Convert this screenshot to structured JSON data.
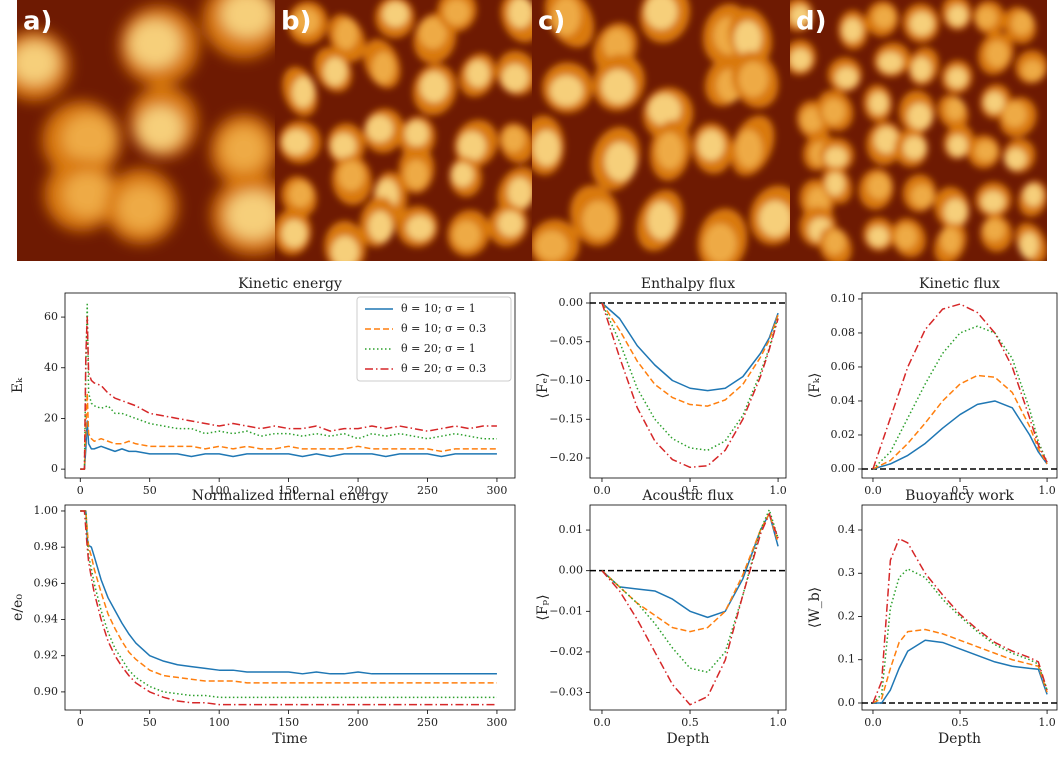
{
  "panels": {
    "labels": [
      "a)",
      "b)",
      "c)",
      "d)"
    ]
  },
  "chart_data": [
    {
      "type": "line",
      "title": "Kinetic energy",
      "ylabel": "Eₖ",
      "x": [
        0,
        3,
        4,
        5,
        6,
        8,
        10,
        15,
        20,
        25,
        30,
        35,
        40,
        50,
        60,
        70,
        80,
        90,
        100,
        110,
        120,
        130,
        140,
        150,
        160,
        170,
        180,
        190,
        200,
        210,
        220,
        230,
        240,
        250,
        260,
        270,
        280,
        290,
        300
      ],
      "xlim": [
        -11,
        313
      ],
      "ylim": [
        -3.5,
        69.5
      ],
      "xticks": [
        0,
        50,
        100,
        150,
        200,
        250,
        300
      ],
      "yticks": [
        0,
        20,
        40,
        60
      ],
      "legend": "upper right",
      "series": [
        {
          "name": "θ = 10; σ = 1",
          "color": "#1f77b4",
          "style": "solid",
          "values": [
            0,
            0,
            8,
            19,
            10,
            8,
            8,
            9,
            8,
            7,
            8,
            7,
            7,
            6,
            6,
            6,
            5,
            6,
            6,
            5,
            6,
            6,
            6,
            6,
            5,
            6,
            5,
            6,
            6,
            6,
            5,
            6,
            6,
            6,
            5,
            6,
            6,
            6,
            6
          ]
        },
        {
          "name": "θ = 10; σ = 0.3",
          "color": "#ff7f0e",
          "style": "dashed",
          "values": [
            0,
            0,
            15,
            30,
            14,
            12,
            11,
            12,
            11,
            10,
            10,
            11,
            10,
            9,
            9,
            9,
            9,
            8,
            9,
            8,
            9,
            8,
            8,
            9,
            8,
            8,
            8,
            8,
            9,
            8,
            8,
            8,
            8,
            8,
            7,
            8,
            8,
            8,
            8
          ]
        },
        {
          "name": "θ = 20; σ = 1",
          "color": "#2ca02c",
          "style": "dotted",
          "values": [
            0,
            0,
            40,
            65,
            30,
            26,
            25,
            24,
            25,
            22,
            22,
            21,
            20,
            18,
            17,
            16,
            16,
            14,
            15,
            14,
            15,
            13,
            14,
            14,
            13,
            14,
            13,
            14,
            12,
            14,
            13,
            14,
            13,
            12,
            13,
            14,
            13,
            12,
            12
          ]
        },
        {
          "name": "θ = 20; σ = 0.3",
          "color": "#d62728",
          "style": "dashdot",
          "values": [
            0,
            0,
            45,
            60,
            38,
            35,
            34,
            33,
            30,
            28,
            27,
            26,
            25,
            22,
            21,
            20,
            19,
            18,
            17,
            18,
            17,
            16,
            17,
            16,
            16,
            17,
            15,
            16,
            16,
            17,
            16,
            17,
            16,
            15,
            16,
            17,
            16,
            17,
            17
          ]
        }
      ]
    },
    {
      "type": "line",
      "title": "Normalized internal energy",
      "xlabel": "Time",
      "ylabel": "e/e₀",
      "x": [
        0,
        3,
        4,
        5,
        6,
        8,
        10,
        15,
        20,
        25,
        30,
        35,
        40,
        50,
        60,
        70,
        80,
        90,
        100,
        110,
        120,
        130,
        140,
        150,
        160,
        170,
        180,
        190,
        200,
        210,
        220,
        230,
        240,
        250,
        260,
        270,
        280,
        290,
        300
      ],
      "xlim": [
        -11,
        313
      ],
      "ylim": [
        0.89,
        1.0033
      ],
      "xticks": [
        0,
        50,
        100,
        150,
        200,
        250,
        300
      ],
      "yticks": [
        {
          "value": 1,
          "label": "1.00"
        },
        0.98,
        0.96,
        0.94,
        0.92,
        {
          "value": 0.9,
          "label": "0.90"
        }
      ],
      "series": [
        {
          "color": "#1f77b4",
          "style": "solid",
          "values": [
            1,
            1,
            1,
            0.985,
            0.981,
            0.98,
            0.975,
            0.962,
            0.952,
            0.945,
            0.938,
            0.932,
            0.927,
            0.92,
            0.917,
            0.915,
            0.914,
            0.913,
            0.912,
            0.912,
            0.911,
            0.911,
            0.911,
            0.911,
            0.91,
            0.911,
            0.91,
            0.91,
            0.911,
            0.91,
            0.91,
            0.91,
            0.91,
            0.91,
            0.91,
            0.91,
            0.91,
            0.91,
            0.91
          ]
        },
        {
          "color": "#ff7f0e",
          "style": "dashed",
          "values": [
            1,
            1,
            1,
            0.99,
            0.98,
            0.975,
            0.968,
            0.955,
            0.943,
            0.935,
            0.928,
            0.922,
            0.918,
            0.912,
            0.909,
            0.908,
            0.907,
            0.906,
            0.906,
            0.906,
            0.905,
            0.905,
            0.905,
            0.905,
            0.905,
            0.905,
            0.905,
            0.905,
            0.905,
            0.905,
            0.905,
            0.905,
            0.905,
            0.905,
            0.905,
            0.905,
            0.905,
            0.905,
            0.905
          ]
        },
        {
          "color": "#2ca02c",
          "style": "dotted",
          "values": [
            1,
            1,
            1,
            0.985,
            0.975,
            0.968,
            0.96,
            0.945,
            0.933,
            0.924,
            0.918,
            0.912,
            0.908,
            0.903,
            0.9,
            0.899,
            0.898,
            0.898,
            0.897,
            0.897,
            0.897,
            0.897,
            0.897,
            0.897,
            0.897,
            0.897,
            0.897,
            0.897,
            0.897,
            0.897,
            0.897,
            0.897,
            0.897,
            0.897,
            0.897,
            0.897,
            0.897,
            0.897,
            0.897
          ]
        },
        {
          "color": "#d62728",
          "style": "dashdot",
          "values": [
            1,
            1,
            0.99,
            0.98,
            0.972,
            0.963,
            0.955,
            0.94,
            0.928,
            0.92,
            0.914,
            0.909,
            0.905,
            0.9,
            0.897,
            0.895,
            0.894,
            0.894,
            0.893,
            0.893,
            0.893,
            0.893,
            0.893,
            0.893,
            0.893,
            0.893,
            0.893,
            0.893,
            0.893,
            0.893,
            0.893,
            0.893,
            0.893,
            0.893,
            0.893,
            0.893,
            0.893,
            0.893,
            0.893
          ]
        }
      ]
    },
    {
      "type": "line",
      "title": "Enthalpy flux",
      "ylabel": "⟨Fₑ⟩",
      "hline": 0,
      "x": [
        0,
        0.1,
        0.2,
        0.3,
        0.4,
        0.5,
        0.6,
        0.7,
        0.8,
        0.9,
        0.95,
        1
      ],
      "xlim": [
        -0.068,
        1.045
      ],
      "ylim": [
        -0.2258,
        0.0129
      ],
      "xticks": [
        {
          "value": 0,
          "label": "0.0"
        },
        0.5,
        {
          "value": 1,
          "label": "1.0"
        }
      ],
      "yticks": [
        {
          "value": 0,
          "label": "0.00"
        },
        {
          "value": -0.05,
          "label": "−0.05"
        },
        {
          "value": -0.1,
          "label": "−0.10"
        },
        {
          "value": -0.15,
          "label": "−0.15"
        },
        {
          "value": -0.2,
          "label": "−0.20"
        }
      ],
      "series": [
        {
          "color": "#1f77b4",
          "style": "solid",
          "values": [
            0,
            -0.02,
            -0.055,
            -0.08,
            -0.1,
            -0.11,
            -0.113,
            -0.11,
            -0.095,
            -0.065,
            -0.045,
            -0.013
          ]
        },
        {
          "color": "#ff7f0e",
          "style": "dashed",
          "values": [
            0,
            -0.035,
            -0.075,
            -0.105,
            -0.122,
            -0.131,
            -0.133,
            -0.125,
            -0.105,
            -0.07,
            -0.048,
            -0.015
          ]
        },
        {
          "color": "#2ca02c",
          "style": "dotted",
          "values": [
            0,
            -0.05,
            -0.11,
            -0.15,
            -0.175,
            -0.187,
            -0.19,
            -0.178,
            -0.145,
            -0.09,
            -0.058,
            -0.017
          ]
        },
        {
          "color": "#d62728",
          "style": "dashdot",
          "values": [
            0,
            -0.07,
            -0.135,
            -0.178,
            -0.202,
            -0.212,
            -0.21,
            -0.19,
            -0.15,
            -0.095,
            -0.06,
            -0.02
          ]
        }
      ]
    },
    {
      "type": "line",
      "title": "Kinetic flux",
      "ylabel": "⟨Fₖ⟩",
      "hline": 0,
      "x": [
        0,
        0.1,
        0.2,
        0.3,
        0.4,
        0.5,
        0.6,
        0.7,
        0.8,
        0.9,
        0.95,
        1
      ],
      "xlim": [
        -0.063,
        1.057
      ],
      "ylim": [
        -0.0053,
        0.1035
      ],
      "xticks": [
        {
          "value": 0,
          "label": "0.0"
        },
        0.5,
        {
          "value": 1,
          "label": "1.0"
        }
      ],
      "yticks": [
        {
          "value": 0,
          "label": "0.00"
        },
        0.02,
        0.04,
        0.06,
        0.08,
        {
          "value": 0.1,
          "label": "0.10"
        }
      ],
      "series": [
        {
          "color": "#1f77b4",
          "style": "solid",
          "values": [
            0,
            0.003,
            0.008,
            0.015,
            0.024,
            0.032,
            0.038,
            0.04,
            0.036,
            0.02,
            0.01,
            0.003
          ]
        },
        {
          "color": "#ff7f0e",
          "style": "dashed",
          "values": [
            0,
            0.005,
            0.015,
            0.027,
            0.04,
            0.05,
            0.055,
            0.054,
            0.045,
            0.025,
            0.012,
            0.003
          ]
        },
        {
          "color": "#2ca02c",
          "style": "dotted",
          "values": [
            0,
            0.01,
            0.03,
            0.05,
            0.068,
            0.08,
            0.084,
            0.08,
            0.065,
            0.035,
            0.016,
            0.004
          ]
        },
        {
          "color": "#d62728",
          "style": "dashdot",
          "values": [
            0,
            0.03,
            0.06,
            0.082,
            0.094,
            0.097,
            0.092,
            0.08,
            0.06,
            0.03,
            0.014,
            0.004
          ]
        }
      ]
    },
    {
      "type": "line",
      "title": "Acoustic flux",
      "xlabel": "Depth",
      "ylabel": "⟨Fₚ⟩",
      "hline": 0,
      "x": [
        0,
        0.1,
        0.2,
        0.3,
        0.4,
        0.5,
        0.6,
        0.7,
        0.8,
        0.9,
        0.95,
        1
      ],
      "xlim": [
        -0.068,
        1.045
      ],
      "ylim": [
        -0.0343,
        0.01617
      ],
      "xticks": [
        {
          "value": 0,
          "label": "0.0"
        },
        0.5,
        {
          "value": 1,
          "label": "1.0"
        }
      ],
      "yticks": [
        0.01,
        {
          "value": 0,
          "label": "0.00"
        },
        {
          "value": -0.01,
          "label": "−0.01"
        },
        {
          "value": -0.02,
          "label": "−0.02"
        },
        {
          "value": -0.03,
          "label": "−0.03"
        }
      ],
      "series": [
        {
          "color": "#1f77b4",
          "style": "solid",
          "values": [
            0,
            -0.004,
            -0.0045,
            -0.005,
            -0.007,
            -0.01,
            -0.0115,
            -0.01,
            -0.002,
            0.01,
            0.014,
            0.006
          ]
        },
        {
          "color": "#ff7f0e",
          "style": "dashed",
          "values": [
            0,
            -0.004,
            -0.008,
            -0.011,
            -0.014,
            -0.015,
            -0.014,
            -0.01,
            -0.001,
            0.01,
            0.014,
            0.007
          ]
        },
        {
          "color": "#2ca02c",
          "style": "dotted",
          "values": [
            0,
            -0.004,
            -0.008,
            -0.013,
            -0.019,
            -0.024,
            -0.025,
            -0.02,
            -0.006,
            0.01,
            0.015,
            0.008
          ]
        },
        {
          "color": "#d62728",
          "style": "dashdot",
          "values": [
            0,
            -0.005,
            -0.012,
            -0.02,
            -0.028,
            -0.033,
            -0.031,
            -0.022,
            -0.006,
            0.009,
            0.014,
            0.008
          ]
        }
      ]
    },
    {
      "type": "line",
      "title": "Buoyancy work",
      "xlabel": "Depth",
      "ylabel": "⟨W_b⟩",
      "hline": 0,
      "x": [
        0,
        0.05,
        0.1,
        0.15,
        0.2,
        0.3,
        0.4,
        0.5,
        0.6,
        0.7,
        0.8,
        0.9,
        0.95,
        1
      ],
      "xlim": [
        -0.063,
        1.057
      ],
      "ylim": [
        -0.0162,
        0.4578
      ],
      "xticks": [
        {
          "value": 0,
          "label": "0.0"
        },
        0.5,
        {
          "value": 1,
          "label": "1.0"
        }
      ],
      "yticks": [
        {
          "value": 0,
          "label": "0.0"
        },
        0.1,
        0.2,
        0.3,
        0.4
      ],
      "series": [
        {
          "color": "#1f77b4",
          "style": "solid",
          "values": [
            0,
            0,
            0.03,
            0.08,
            0.12,
            0.145,
            0.14,
            0.125,
            0.11,
            0.095,
            0.085,
            0.08,
            0.078,
            0.02
          ]
        },
        {
          "color": "#ff7f0e",
          "style": "dashed",
          "values": [
            0,
            0.01,
            0.08,
            0.14,
            0.165,
            0.17,
            0.16,
            0.145,
            0.13,
            0.115,
            0.1,
            0.09,
            0.085,
            0.025
          ]
        },
        {
          "color": "#2ca02c",
          "style": "dotted",
          "values": [
            0,
            0.02,
            0.22,
            0.29,
            0.31,
            0.29,
            0.24,
            0.2,
            0.165,
            0.135,
            0.115,
            0.1,
            0.09,
            0.03
          ]
        },
        {
          "color": "#d62728",
          "style": "dashdot",
          "values": [
            0,
            0.05,
            0.33,
            0.38,
            0.37,
            0.3,
            0.25,
            0.205,
            0.17,
            0.14,
            0.12,
            0.105,
            0.095,
            0.03
          ]
        }
      ]
    }
  ]
}
